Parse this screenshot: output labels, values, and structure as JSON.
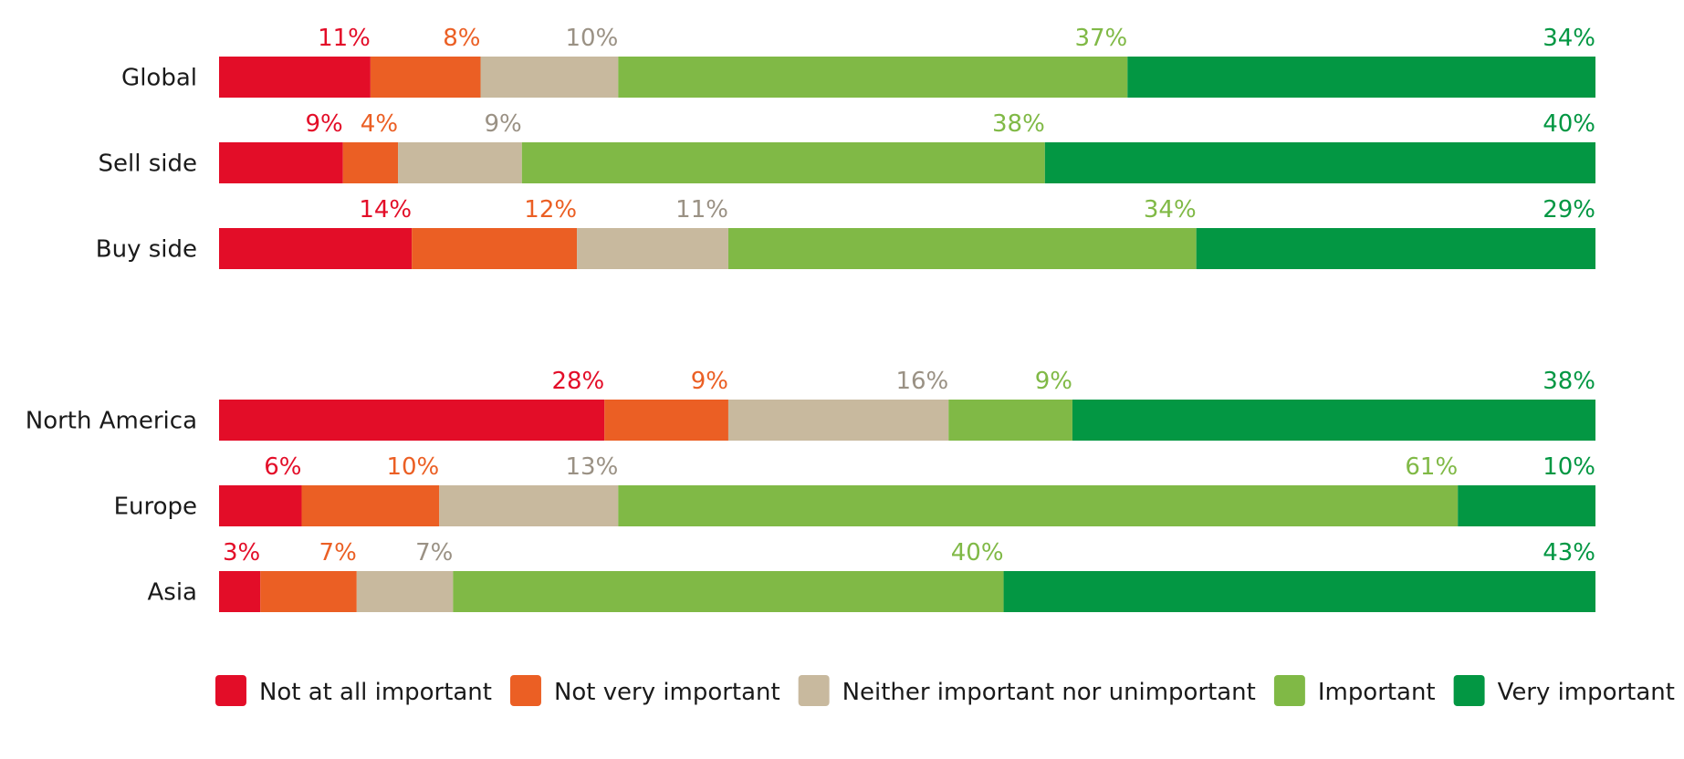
{
  "chart_data": {
    "type": "bar",
    "orientation": "horizontal",
    "stacked": true,
    "title": "",
    "xlabel": "",
    "ylabel": "",
    "xlim": [
      0,
      100
    ],
    "grid": false,
    "legend_position": "bottom",
    "groups": [
      {
        "categories": [
          "Global",
          "Sell side",
          "Buy side"
        ],
        "series": [
          {
            "name": "Not at all important",
            "color": "#e30d28",
            "values": [
              11,
              9,
              14
            ],
            "labels": [
              "11%",
              "9%",
              "14%"
            ]
          },
          {
            "name": "Not very important",
            "color": "#eb5f24",
            "values": [
              8,
              4,
              12
            ],
            "labels": [
              "8%",
              "4%",
              "12%"
            ]
          },
          {
            "name": "Neither important nor unimportant",
            "color": "#c8b99e",
            "values": [
              10,
              9,
              11
            ],
            "labels": [
              "10%",
              "9%",
              "11%"
            ]
          },
          {
            "name": "Important",
            "color": "#80b946",
            "values": [
              37,
              38,
              34
            ],
            "labels": [
              "37%",
              "38%",
              "34%"
            ]
          },
          {
            "name": "Very important",
            "color": "#039743",
            "values": [
              34,
              40,
              29
            ],
            "labels": [
              "34%",
              "40%",
              "29%"
            ]
          }
        ]
      },
      {
        "categories": [
          "North America",
          "Europe",
          "Asia"
        ],
        "series": [
          {
            "name": "Not at all important",
            "color": "#e30d28",
            "values": [
              28,
              6,
              3
            ],
            "labels": [
              "28%",
              "6%",
              "3%"
            ]
          },
          {
            "name": "Not very important",
            "color": "#eb5f24",
            "values": [
              9,
              10,
              7
            ],
            "labels": [
              "9%",
              "10%",
              "7%"
            ]
          },
          {
            "name": "Neither important nor unimportant",
            "color": "#c8b99e",
            "values": [
              16,
              13,
              7
            ],
            "labels": [
              "16%",
              "13%",
              "7%"
            ]
          },
          {
            "name": "Important",
            "color": "#80b946",
            "values": [
              9,
              61,
              40
            ],
            "labels": [
              "9%",
              "61%",
              "40%"
            ]
          },
          {
            "name": "Very important",
            "color": "#039743",
            "values": [
              38,
              10,
              43
            ],
            "labels": [
              "38%",
              "10%",
              "43%"
            ]
          }
        ]
      }
    ],
    "label_colors": [
      "#e30d28",
      "#eb5f24",
      "#9a9184",
      "#80b946",
      "#039743"
    ]
  }
}
